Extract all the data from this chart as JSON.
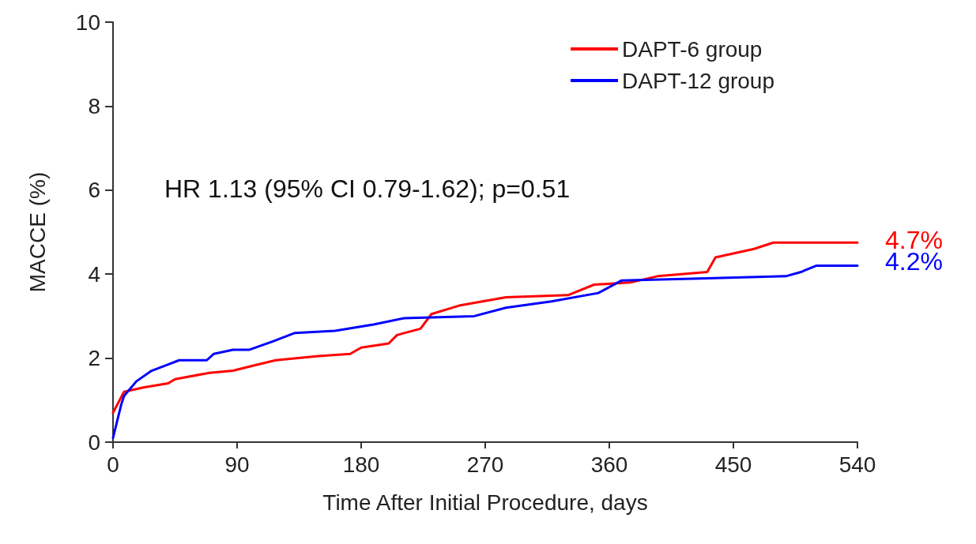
{
  "chart_data": {
    "type": "line",
    "xlabel": "Time After Initial Procedure, days",
    "ylabel": "MACCE (%)",
    "xlim": [
      0,
      540
    ],
    "xticks": [
      0,
      90,
      180,
      270,
      360,
      450,
      540
    ],
    "ylim": [
      0,
      10
    ],
    "yticks": [
      0,
      2,
      4,
      6,
      8,
      10
    ],
    "grid": false,
    "legend": "top right",
    "marker": "none",
    "line_style": "solid",
    "series": [
      {
        "name": "DAPT-6 group",
        "color": "#ff0000",
        "x": [
          0,
          8,
          22,
          40,
          45,
          70,
          87,
          99,
          118,
          149,
          172,
          180,
          200,
          206,
          223,
          231,
          251,
          285,
          330,
          349,
          375,
          395,
          431,
          437,
          465,
          479,
          540
        ],
        "values": [
          0.7,
          1.2,
          1.3,
          1.4,
          1.5,
          1.65,
          1.7,
          1.8,
          1.95,
          2.05,
          2.1,
          2.25,
          2.35,
          2.55,
          2.7,
          3.05,
          3.25,
          3.45,
          3.5,
          3.75,
          3.8,
          3.95,
          4.05,
          4.4,
          4.6,
          4.75,
          4.75
        ]
      },
      {
        "name": "DAPT-12 group",
        "color": "#0000ff",
        "x": [
          0,
          6,
          8,
          17,
          28,
          40,
          48,
          68,
          73,
          87,
          99,
          116,
          132,
          161,
          189,
          211,
          262,
          285,
          318,
          352,
          369,
          431,
          488,
          499,
          510,
          540
        ],
        "values": [
          0.1,
          0.9,
          1.1,
          1.45,
          1.7,
          1.85,
          1.95,
          1.95,
          2.1,
          2.2,
          2.2,
          2.4,
          2.6,
          2.65,
          2.8,
          2.95,
          3.0,
          3.2,
          3.35,
          3.55,
          3.85,
          3.9,
          3.95,
          4.05,
          4.2,
          4.2
        ]
      }
    ],
    "annotations": [
      "HR 1.13 (95% CI 0.79-1.62); p=0.51",
      {
        "text": "4.7%",
        "x": 540,
        "y": 4.7
      },
      {
        "text": "4.2%",
        "x": 540,
        "y": 4.2
      }
    ]
  }
}
